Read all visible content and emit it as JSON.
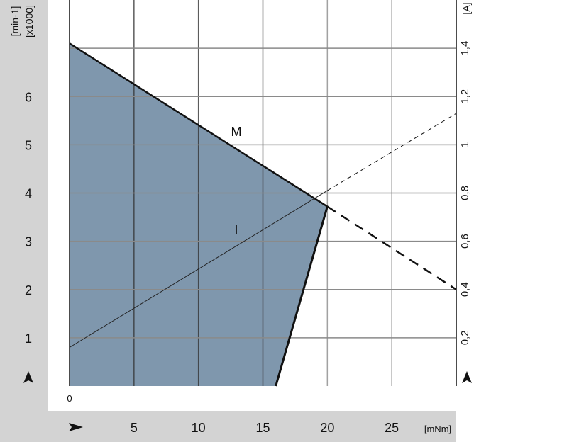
{
  "chart_data": {
    "type": "line",
    "xlabel": "[mNm]",
    "ylabel_left": [
      "[min-1]",
      "[x1000]"
    ],
    "ylabel_right": "[A]",
    "x_ticks": [
      0,
      5,
      10,
      15,
      20,
      25
    ],
    "x_tick_labels": [
      "0",
      "5",
      "10",
      "15",
      "20",
      "25"
    ],
    "y_left_ticks": [
      1,
      2,
      3,
      4,
      5,
      6
    ],
    "y_left_tick_labels": [
      "1",
      "2",
      "3",
      "4",
      "5",
      "6"
    ],
    "y_right_ticks": [
      0.2,
      0.4,
      0.6,
      0.8,
      1.0,
      1.2,
      1.4
    ],
    "y_right_tick_labels": [
      "0,2",
      "0,4",
      "0,6",
      "0,8",
      "1",
      "1,2",
      "1,4"
    ],
    "xlim": [
      0,
      30
    ],
    "ylim_left": [
      0,
      8
    ],
    "ylim_right": [
      0,
      1.6
    ],
    "grid": true,
    "series": [
      {
        "name": "M",
        "axis": "left",
        "solid": [
          [
            0,
            7.1
          ],
          [
            20,
            3.72
          ]
        ],
        "dashed": [
          [
            20,
            3.72
          ],
          [
            30,
            2.0
          ]
        ]
      },
      {
        "name": "I",
        "axis": "right",
        "solid": [
          [
            0,
            0.16
          ],
          [
            20,
            0.81
          ]
        ],
        "dashed": [
          [
            20,
            0.81
          ],
          [
            30,
            1.13
          ]
        ]
      }
    ],
    "operating_area": [
      [
        0,
        7.1
      ],
      [
        20,
        3.72
      ],
      [
        16,
        0
      ],
      [
        0,
        0
      ]
    ],
    "colors": {
      "area": "#7f97ad",
      "band": "#d3d3d3",
      "grid": "#8a8a8a"
    }
  }
}
